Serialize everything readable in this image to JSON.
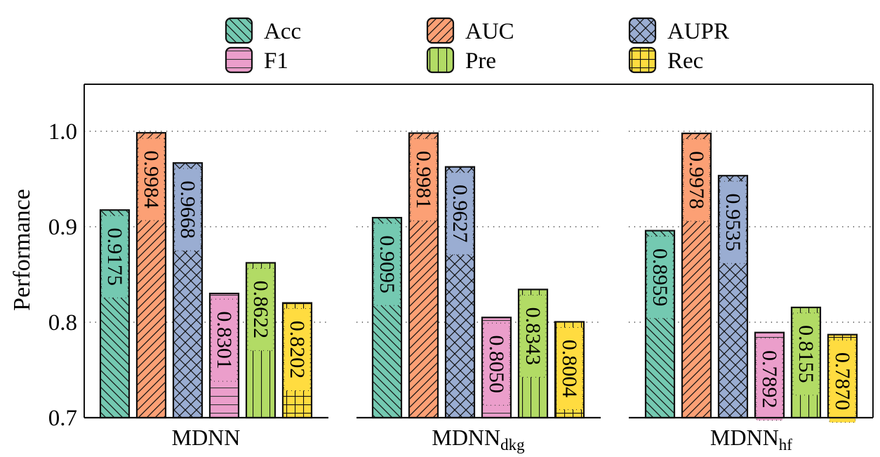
{
  "chart_data": {
    "type": "bar",
    "title": "",
    "xlabel": "",
    "ylabel": "Performance",
    "ylim": [
      0.7,
      1.05
    ],
    "yticks": [
      0.7,
      0.8,
      0.9,
      1.0
    ],
    "ytick_labels": [
      "0.7",
      "0.8",
      "0.9",
      "1.0"
    ],
    "grid": "y-dotted",
    "legend_position": "top-center",
    "categories": [
      {
        "main": "MDNN",
        "sub": ""
      },
      {
        "main": "MDNN",
        "sub": "dkg"
      },
      {
        "main": "MDNN",
        "sub": "hf"
      }
    ],
    "series": [
      {
        "name": "Acc",
        "color": "#74c9b1",
        "hatch": "backslash",
        "values": [
          0.9175,
          0.9095,
          0.8959
        ],
        "labels": [
          "0.9175",
          "0.9095",
          "0.8959"
        ]
      },
      {
        "name": "AUC",
        "color": "#fca075",
        "hatch": "slash",
        "values": [
          0.9984,
          0.9981,
          0.9978
        ],
        "labels": [
          "0.9984",
          "0.9981",
          "0.9978"
        ]
      },
      {
        "name": "AUPR",
        "color": "#9aadd2",
        "hatch": "cross",
        "values": [
          0.9668,
          0.9627,
          0.9535
        ],
        "labels": [
          "0.9668",
          "0.9627",
          "0.9535"
        ]
      },
      {
        "name": "F1",
        "color": "#eb9ecb",
        "hatch": "horizontal",
        "values": [
          0.8301,
          0.805,
          0.7892
        ],
        "labels": [
          "0.8301",
          "0.8050",
          "0.7892"
        ]
      },
      {
        "name": "Pre",
        "color": "#b2db65",
        "hatch": "vertical",
        "values": [
          0.8622,
          0.8343,
          0.8155
        ],
        "labels": [
          "0.8622",
          "0.8343",
          "0.8155"
        ]
      },
      {
        "name": "Rec",
        "color": "#ffdc40",
        "hatch": "grid",
        "values": [
          0.8202,
          0.8004,
          0.787
        ],
        "labels": [
          "0.8202",
          "0.8004",
          "0.7870"
        ]
      }
    ]
  }
}
